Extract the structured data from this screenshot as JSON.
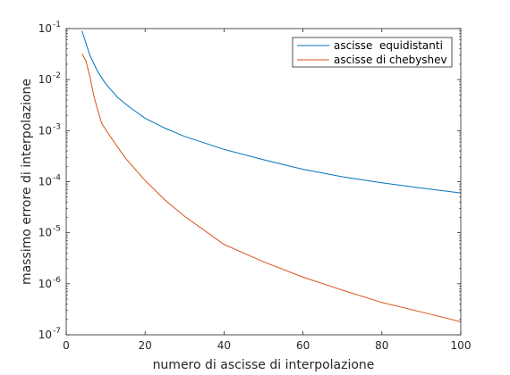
{
  "chart_data": {
    "type": "line",
    "title": "",
    "xlabel": "numero di ascisse di interpolazione",
    "ylabel": "massimo errore di interpolazione",
    "xlim": [
      0,
      100
    ],
    "ylim": [
      1e-07,
      0.1
    ],
    "yscale": "log",
    "grid": false,
    "legend_position": "top-right",
    "x_ticks": [
      0,
      20,
      40,
      60,
      80,
      100
    ],
    "x_tick_labels": [
      "0",
      "20",
      "40",
      "60",
      "80",
      "100"
    ],
    "y_ticks": [
      1e-07,
      1e-06,
      1e-05,
      0.0001,
      0.001,
      0.01,
      0.1
    ],
    "y_tick_labels": [
      {
        "base": "10",
        "exp": "-7"
      },
      {
        "base": "10",
        "exp": "-6"
      },
      {
        "base": "10",
        "exp": "-5"
      },
      {
        "base": "10",
        "exp": "-4"
      },
      {
        "base": "10",
        "exp": "-3"
      },
      {
        "base": "10",
        "exp": "-2"
      },
      {
        "base": "10",
        "exp": "-1"
      }
    ],
    "series": [
      {
        "name": "ascisse  equidistanti",
        "color": "#0072BD",
        "x": [
          4,
          6,
          8,
          10,
          13,
          16,
          20,
          25,
          30,
          40,
          50,
          60,
          70,
          80,
          90,
          100
        ],
        "y": [
          0.09,
          0.03,
          0.0142,
          0.0083,
          0.0045,
          0.0029,
          0.00175,
          0.00112,
          0.00077,
          0.00043,
          0.00027,
          0.000175,
          0.000125,
          9.5e-05,
          7.5e-05,
          6e-05
        ]
      },
      {
        "name": "ascisse di chebyshev",
        "color": "#D95319",
        "x": [
          4,
          5,
          6,
          7,
          8,
          9,
          10,
          12,
          15,
          20,
          25,
          30,
          40,
          50,
          60,
          70,
          80,
          90,
          100
        ],
        "y": [
          0.032,
          0.023,
          0.0115,
          0.0048,
          0.0025,
          0.0014,
          0.00105,
          0.00062,
          0.00029,
          0.000105,
          4.4e-05,
          2.1e-05,
          5.9e-06,
          2.7e-06,
          1.35e-06,
          7.5e-07,
          4.3e-07,
          2.8e-07,
          1.8e-07
        ]
      }
    ]
  }
}
